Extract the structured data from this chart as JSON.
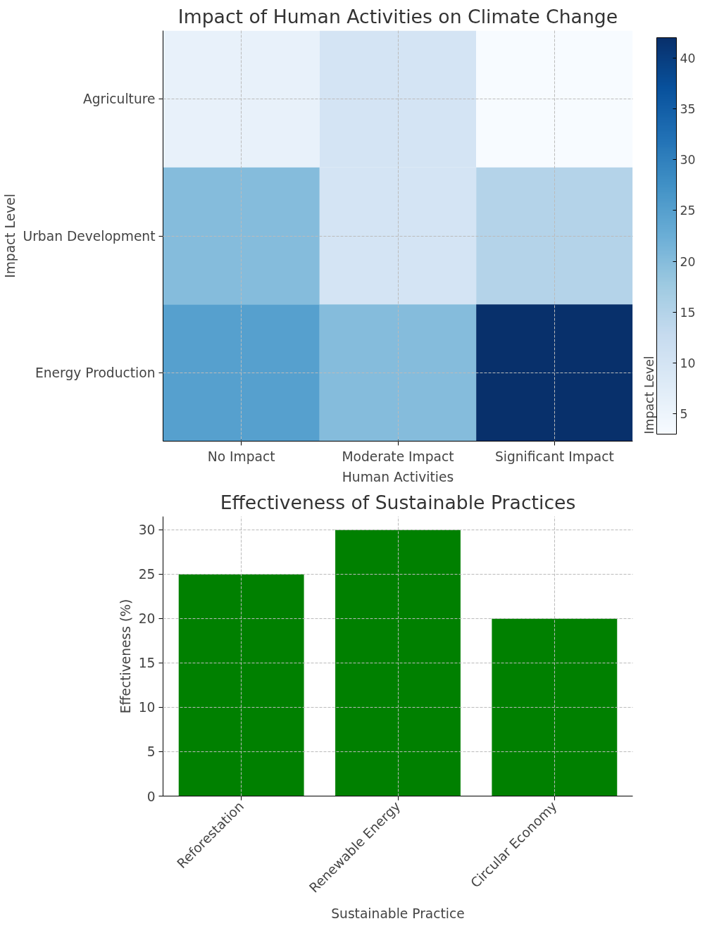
{
  "chart_data": [
    {
      "type": "heatmap",
      "title": "Impact of Human Activities on Climate Change",
      "xlabel": "Human Activities",
      "ylabel": "Impact Level",
      "clabel": "Impact Level",
      "categories": [
        "No Impact",
        "Moderate Impact",
        "Significant Impact"
      ],
      "y_categories": [
        "Agriculture",
        "Urban Development",
        "Energy Production"
      ],
      "cells": [
        [
          6,
          10,
          3
        ],
        [
          20,
          10,
          15
        ],
        [
          25,
          20,
          42
        ]
      ],
      "clim": [
        3,
        42
      ],
      "cticks": [
        5,
        10,
        15,
        20,
        25,
        30,
        35,
        40
      ],
      "grid": true
    },
    {
      "type": "bar",
      "title": "Effectiveness of Sustainable Practices",
      "xlabel": "Sustainable Practice",
      "ylabel": "Effectiveness (%)",
      "categories": [
        "Reforestation",
        "Renewable Energy",
        "Circular Economy"
      ],
      "values": [
        25,
        30,
        20
      ],
      "color": "#008000",
      "ylim": [
        0,
        31.5
      ],
      "yticks": [
        0,
        5,
        10,
        15,
        20,
        25,
        30
      ],
      "grid": true
    }
  ]
}
